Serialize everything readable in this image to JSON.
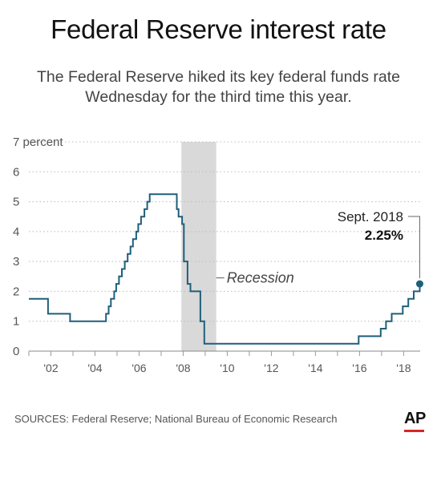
{
  "header": {
    "title": "Federal Reserve interest rate",
    "subtitle_line1": "The Federal Reserve hiked its key federal funds rate",
    "subtitle_line2": "Wednesday for the third time this year."
  },
  "footer": {
    "source": "SOURCES: Federal Reserve; National Bureau of Economic Research",
    "logo_text": "AP"
  },
  "colors": {
    "line": "#1f5f7a",
    "recession": "#d9d9d9",
    "logo_underline": "#d62728"
  },
  "chart_data": {
    "type": "line",
    "title": "Federal Reserve interest rate",
    "ylabel": "percent",
    "ylim": [
      0,
      7
    ],
    "xlim": [
      2001.0,
      2018.75
    ],
    "y_ticks": [
      0,
      1,
      2,
      3,
      4,
      5,
      6,
      7
    ],
    "y_tick_labels": [
      "0",
      "1",
      "2",
      "3",
      "4",
      "5",
      "6",
      "7 percent"
    ],
    "x_ticks": [
      2002,
      2004,
      2006,
      2008,
      2010,
      2012,
      2014,
      2016,
      2018
    ],
    "x_tick_labels": [
      "'02",
      "'04",
      "'06",
      "'08",
      "'10",
      "'12",
      "'14",
      "'16",
      "'18"
    ],
    "grid": true,
    "step": true,
    "series": [
      {
        "points": [
          [
            2001.0,
            1.75
          ],
          [
            2001.87,
            1.75
          ],
          [
            2001.87,
            1.25
          ],
          [
            2002.87,
            1.25
          ],
          [
            2002.87,
            1.0
          ],
          [
            2004.5,
            1.0
          ],
          [
            2004.5,
            1.25
          ],
          [
            2004.62,
            1.25
          ],
          [
            2004.62,
            1.5
          ],
          [
            2004.72,
            1.5
          ],
          [
            2004.72,
            1.75
          ],
          [
            2004.87,
            1.75
          ],
          [
            2004.87,
            2.0
          ],
          [
            2004.96,
            2.0
          ],
          [
            2004.96,
            2.25
          ],
          [
            2005.09,
            2.25
          ],
          [
            2005.09,
            2.5
          ],
          [
            2005.22,
            2.5
          ],
          [
            2005.22,
            2.75
          ],
          [
            2005.35,
            2.75
          ],
          [
            2005.35,
            3.0
          ],
          [
            2005.48,
            3.0
          ],
          [
            2005.48,
            3.25
          ],
          [
            2005.61,
            3.25
          ],
          [
            2005.61,
            3.5
          ],
          [
            2005.72,
            3.5
          ],
          [
            2005.72,
            3.75
          ],
          [
            2005.87,
            3.75
          ],
          [
            2005.87,
            4.0
          ],
          [
            2005.96,
            4.0
          ],
          [
            2005.96,
            4.25
          ],
          [
            2006.09,
            4.25
          ],
          [
            2006.09,
            4.5
          ],
          [
            2006.24,
            4.5
          ],
          [
            2006.24,
            4.75
          ],
          [
            2006.37,
            4.75
          ],
          [
            2006.37,
            5.0
          ],
          [
            2006.48,
            5.0
          ],
          [
            2006.48,
            5.25
          ],
          [
            2007.71,
            5.25
          ],
          [
            2007.71,
            4.75
          ],
          [
            2007.79,
            4.75
          ],
          [
            2007.79,
            4.5
          ],
          [
            2007.95,
            4.5
          ],
          [
            2007.95,
            4.25
          ],
          [
            2008.03,
            4.25
          ],
          [
            2008.03,
            3.0
          ],
          [
            2008.2,
            3.0
          ],
          [
            2008.2,
            2.25
          ],
          [
            2008.33,
            2.25
          ],
          [
            2008.33,
            2.0
          ],
          [
            2008.78,
            2.0
          ],
          [
            2008.78,
            1.0
          ],
          [
            2008.96,
            1.0
          ],
          [
            2008.96,
            0.25
          ],
          [
            2015.96,
            0.25
          ],
          [
            2015.96,
            0.5
          ],
          [
            2016.96,
            0.5
          ],
          [
            2016.96,
            0.75
          ],
          [
            2017.2,
            0.75
          ],
          [
            2017.2,
            1.0
          ],
          [
            2017.46,
            1.0
          ],
          [
            2017.46,
            1.25
          ],
          [
            2017.96,
            1.25
          ],
          [
            2017.96,
            1.5
          ],
          [
            2018.21,
            1.5
          ],
          [
            2018.21,
            1.75
          ],
          [
            2018.46,
            1.75
          ],
          [
            2018.46,
            2.0
          ],
          [
            2018.73,
            2.0
          ],
          [
            2018.73,
            2.25
          ]
        ]
      }
    ],
    "shaded_region": {
      "label": "Recession",
      "x_start": 2007.92,
      "x_end": 2009.5
    },
    "annotation": {
      "label": "Sept. 2018",
      "value_label": "2.25%",
      "x": 2018.73,
      "y": 2.25
    }
  }
}
